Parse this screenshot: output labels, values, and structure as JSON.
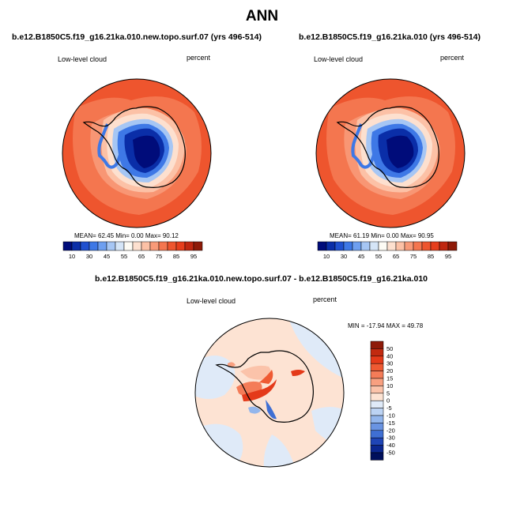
{
  "season": "ANN",
  "variable": "Low-level cloud",
  "units": "percent",
  "panels": [
    {
      "title": "b.e12.B1850C5.f19_g16.21ka.010.new.topo.surf.07 (yrs 496-514)",
      "stats": "MEAN=  62.45  Min=    0.00  Max=  90.12"
    },
    {
      "title": "b.e12.B1850C5.f19_g16.21ka.010 (yrs 496-514)",
      "stats": "MEAN=  61.19  Min=    0.00  Max=  90.95"
    }
  ],
  "colorbar": {
    "labels": [
      "10",
      "30",
      "45",
      "55",
      "65",
      "75",
      "85",
      "95"
    ],
    "colors": [
      "#000c7a",
      "#0a2ea8",
      "#1f50cf",
      "#3e78e6",
      "#6e9ff0",
      "#a6c6f4",
      "#d5e5f7",
      "#fdfbf4",
      "#fde0cf",
      "#fcc1a6",
      "#f89a78",
      "#f4764f",
      "#ee552e",
      "#e63e1c",
      "#bf2710",
      "#8e1a08"
    ]
  },
  "diff": {
    "title": "b.e12.B1850C5.f19_g16.21ka.010.new.topo.surf.07 - b.e12.B1850C5.f19_g16.21ka.010",
    "minmax": "MIN = -17.94  MAX =  49.78",
    "colorbar_labels": [
      "50",
      "40",
      "30",
      "20",
      "15",
      "10",
      "5",
      "0",
      "-5",
      "-10",
      "-15",
      "-20",
      "-30",
      "-40",
      "-50"
    ],
    "colorbar_colors": [
      "#8e1a08",
      "#c22a10",
      "#e43a1a",
      "#ef5a33",
      "#f47c58",
      "#f8a080",
      "#fbc3aa",
      "#fde3d3",
      "#dfeaf8",
      "#bcd3f3",
      "#93b6ec",
      "#6a94e2",
      "#3f6fd3",
      "#1f45b6",
      "#0b2790",
      "#00105c"
    ]
  }
}
